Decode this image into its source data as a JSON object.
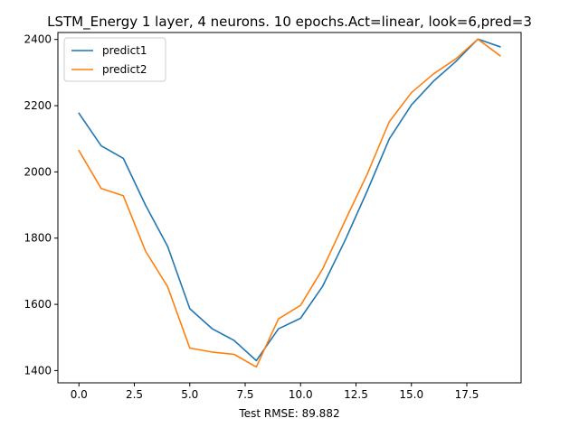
{
  "chart_data": {
    "type": "line",
    "title": "LSTM_Energy 1 layer, 4 neurons. 10 epochs.Act=linear, look=6,pred=3",
    "xlabel": "Test RMSE: 89.882",
    "ylabel": "",
    "xlim": [
      -0.95,
      19.95
    ],
    "ylim": [
      1363,
      2421
    ],
    "xticks": [
      0.0,
      2.5,
      5.0,
      7.5,
      10.0,
      12.5,
      15.0,
      17.5
    ],
    "xtick_labels": [
      "0.0",
      "2.5",
      "5.0",
      "7.5",
      "10.0",
      "12.5",
      "15.0",
      "17.5"
    ],
    "yticks": [
      1400,
      1600,
      1800,
      2000,
      2200,
      2400
    ],
    "ytick_labels": [
      "1400",
      "1600",
      "1800",
      "2000",
      "2200",
      "2400"
    ],
    "grid": false,
    "legend": "top-left",
    "x": [
      0,
      1,
      2,
      3,
      4,
      5,
      6,
      7,
      8,
      9,
      10,
      11,
      12,
      13,
      14,
      15,
      16,
      17,
      18,
      19
    ],
    "series": [
      {
        "name": "predict1",
        "color": "#1f77b4",
        "values": [
          2177,
          2079,
          2041,
          1900,
          1775,
          1587,
          1527,
          1491,
          1430,
          1526,
          1558,
          1655,
          1792,
          1941,
          2099,
          2202,
          2274,
          2333,
          2401,
          2378
        ]
      },
      {
        "name": "predict2",
        "color": "#ff7f0e",
        "values": [
          2064,
          1950,
          1928,
          1761,
          1653,
          1468,
          1456,
          1449,
          1411,
          1556,
          1597,
          1707,
          1851,
          1992,
          2151,
          2239,
          2296,
          2341,
          2401,
          2351
        ]
      }
    ]
  }
}
